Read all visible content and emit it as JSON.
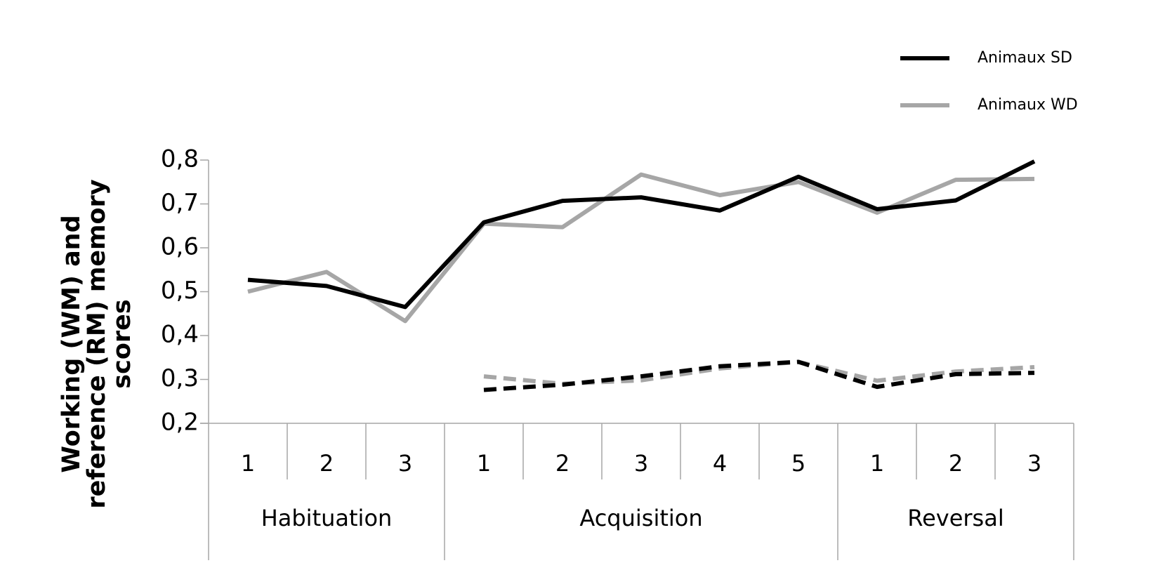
{
  "chart_data": {
    "type": "line",
    "ylabel": [
      "Working (WM) and",
      "reference (RM) memory",
      "scores"
    ],
    "groups": [
      {
        "label": "Habituation",
        "categories": [
          "1",
          "2",
          "3"
        ]
      },
      {
        "label": "Acquisition",
        "categories": [
          "1",
          "2",
          "3",
          "4",
          "5"
        ]
      },
      {
        "label": "Reversal",
        "categories": [
          "1",
          "2",
          "3"
        ]
      }
    ],
    "ylim": [
      0.2,
      0.8
    ],
    "yticks": [
      {
        "value": 0.2,
        "label": "0,2"
      },
      {
        "value": 0.3,
        "label": "0,3"
      },
      {
        "value": 0.4,
        "label": "0,4"
      },
      {
        "value": 0.5,
        "label": "0,5"
      },
      {
        "value": 0.6,
        "label": "0,6"
      },
      {
        "value": 0.7,
        "label": "0,7"
      },
      {
        "value": 0.8,
        "label": "0,8"
      }
    ],
    "legend": "top-right",
    "series": [
      {
        "name": "Animaux WD",
        "color": "#a6a6a6",
        "values": [
          0.5,
          0.545,
          0.433,
          0.655,
          0.647,
          0.767,
          0.72,
          0.75,
          0.68,
          0.755,
          0.757
        ]
      },
      {
        "name": "Animaux SD",
        "color": "#000000",
        "values": [
          0.527,
          0.513,
          0.465,
          0.658,
          0.707,
          0.715,
          0.685,
          0.762,
          0.688,
          0.708,
          0.797
        ]
      },
      {
        "color": "#a6a6a6",
        "dashed": true,
        "values": [
          null,
          null,
          null,
          0.307,
          0.29,
          0.298,
          0.325,
          0.34,
          0.297,
          0.318,
          0.328
        ]
      },
      {
        "color": "#000000",
        "dashed": true,
        "values": [
          null,
          null,
          null,
          0.276,
          0.288,
          0.307,
          0.33,
          0.34,
          0.283,
          0.312,
          0.315
        ]
      }
    ]
  }
}
